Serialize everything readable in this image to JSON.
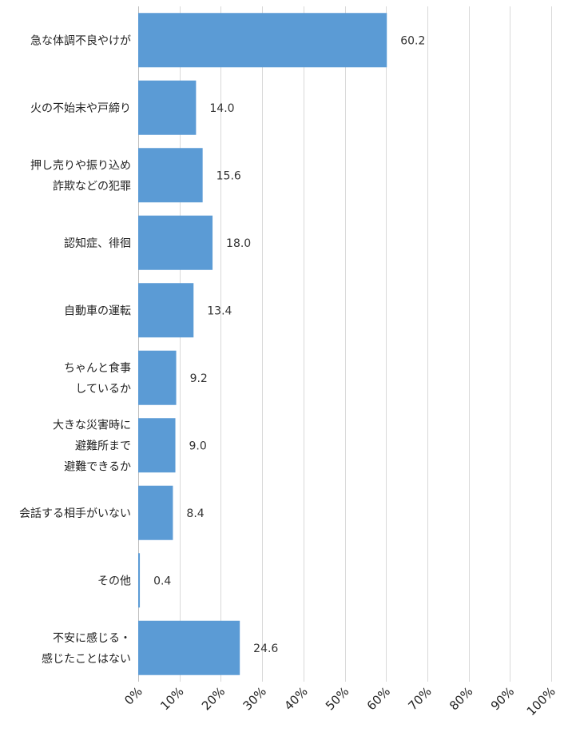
{
  "chart_data": {
    "type": "bar",
    "orientation": "horizontal",
    "categories": [
      [
        "急な体調不良やけが"
      ],
      [
        "火の不始末や戸締り"
      ],
      [
        "押し売りや振り込め",
        "詐欺などの犯罪"
      ],
      [
        "認知症、徘徊"
      ],
      [
        "自動車の運転"
      ],
      [
        "ちゃんと食事",
        "しているか"
      ],
      [
        "大きな災害時に",
        "避難所まで",
        "避難できるか"
      ],
      [
        "会話する相手がいない"
      ],
      [
        "その他"
      ],
      [
        "不安に感じる・",
        "感じたことはない"
      ]
    ],
    "values": [
      60.2,
      14.0,
      15.6,
      18.0,
      13.4,
      9.2,
      9.0,
      8.4,
      0.4,
      24.6
    ],
    "value_labels": [
      "60.2",
      "14.0",
      "15.6",
      "18.0",
      "13.4",
      "9.2",
      "9.0",
      "8.4",
      "0.4",
      "24.6"
    ],
    "xlim": [
      0,
      100
    ],
    "x_ticks": [
      0,
      10,
      20,
      30,
      40,
      50,
      60,
      70,
      80,
      90,
      100
    ],
    "x_tick_labels": [
      "0%",
      "10%",
      "20%",
      "30%",
      "40%",
      "50%",
      "60%",
      "70%",
      "80%",
      "90%",
      "100%"
    ],
    "title": "",
    "xlabel": "",
    "ylabel": "",
    "grid": true,
    "legend": "none",
    "bar_color": "#5b9bd5"
  }
}
